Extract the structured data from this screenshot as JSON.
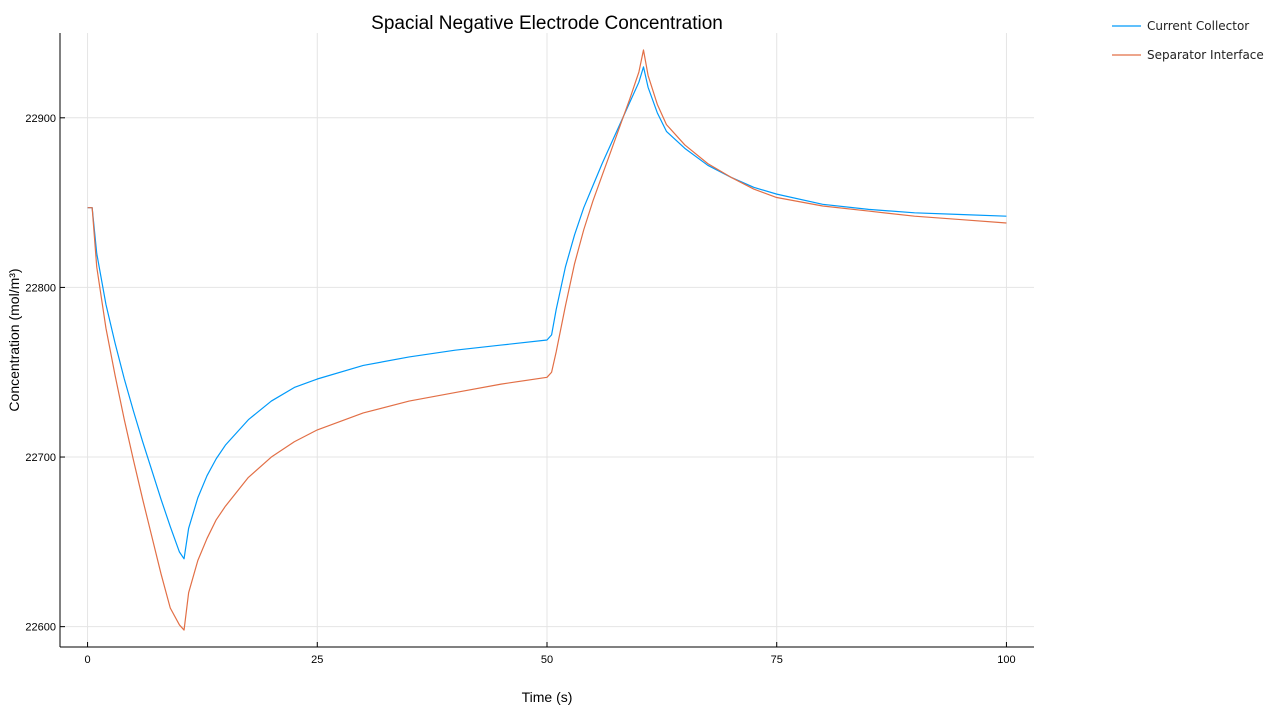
{
  "chart_data": {
    "type": "line",
    "title": "Spacial Negative Electrode Concentration",
    "xlabel": "Time (s)",
    "ylabel": "Concentration (mol/m³)",
    "xlim": [
      -3,
      103
    ],
    "ylim": [
      22588,
      22950
    ],
    "xticks": [
      0,
      25,
      50,
      75,
      100
    ],
    "yticks": [
      22600,
      22700,
      22800,
      22900
    ],
    "grid": true,
    "legend_position": "top-right, outside plot",
    "series": [
      {
        "name": "Current Collector",
        "color": "#009AFA",
        "x": [
          0,
          0.5,
          1,
          2,
          3,
          4,
          5,
          6,
          7,
          8,
          9,
          10,
          10.5,
          11,
          12,
          13,
          14,
          15,
          17.5,
          20,
          22.5,
          25,
          30,
          35,
          40,
          45,
          50,
          50.5,
          51,
          52,
          53,
          54,
          55,
          56,
          57,
          58,
          59,
          60,
          60.5,
          61,
          62,
          63,
          65,
          67.5,
          70,
          72.5,
          75,
          80,
          85,
          90,
          95,
          100
        ],
        "y": [
          22847,
          22847,
          22820,
          22790,
          22767,
          22746,
          22727,
          22709,
          22692,
          22675,
          22659,
          22644,
          22640,
          22658,
          22676,
          22689,
          22699,
          22707,
          22722,
          22733,
          22741,
          22746,
          22754,
          22759,
          22763,
          22766,
          22769,
          22772,
          22787,
          22812,
          22831,
          22847,
          22860,
          22873,
          22885,
          22897,
          22909,
          22921,
          22930,
          22918,
          22903,
          22892,
          22882,
          22872,
          22865,
          22859,
          22855,
          22849,
          22846,
          22844,
          22843,
          22842
        ]
      },
      {
        "name": "Separator Interface",
        "color": "#E26F46",
        "x": [
          0,
          0.5,
          1,
          2,
          3,
          4,
          5,
          6,
          7,
          8,
          9,
          10,
          10.5,
          11,
          12,
          13,
          14,
          15,
          17.5,
          20,
          22.5,
          25,
          30,
          35,
          40,
          45,
          50,
          50.5,
          51,
          52,
          53,
          54,
          55,
          56,
          57,
          58,
          59,
          60,
          60.5,
          61,
          62,
          63,
          65,
          67.5,
          70,
          72.5,
          75,
          80,
          85,
          90,
          95,
          100
        ],
        "y": [
          22847,
          22847,
          22812,
          22776,
          22748,
          22722,
          22698,
          22675,
          22653,
          22631,
          22611,
          22601,
          22598,
          22620,
          22639,
          22652,
          22663,
          22671,
          22688,
          22700,
          22709,
          22716,
          22726,
          22733,
          22738,
          22743,
          22747,
          22750,
          22762,
          22789,
          22814,
          22834,
          22851,
          22866,
          22881,
          22896,
          22911,
          22927,
          22940,
          22925,
          22908,
          22896,
          22884,
          22873,
          22865,
          22858,
          22853,
          22848,
          22845,
          22842,
          22840,
          22838
        ]
      }
    ]
  }
}
